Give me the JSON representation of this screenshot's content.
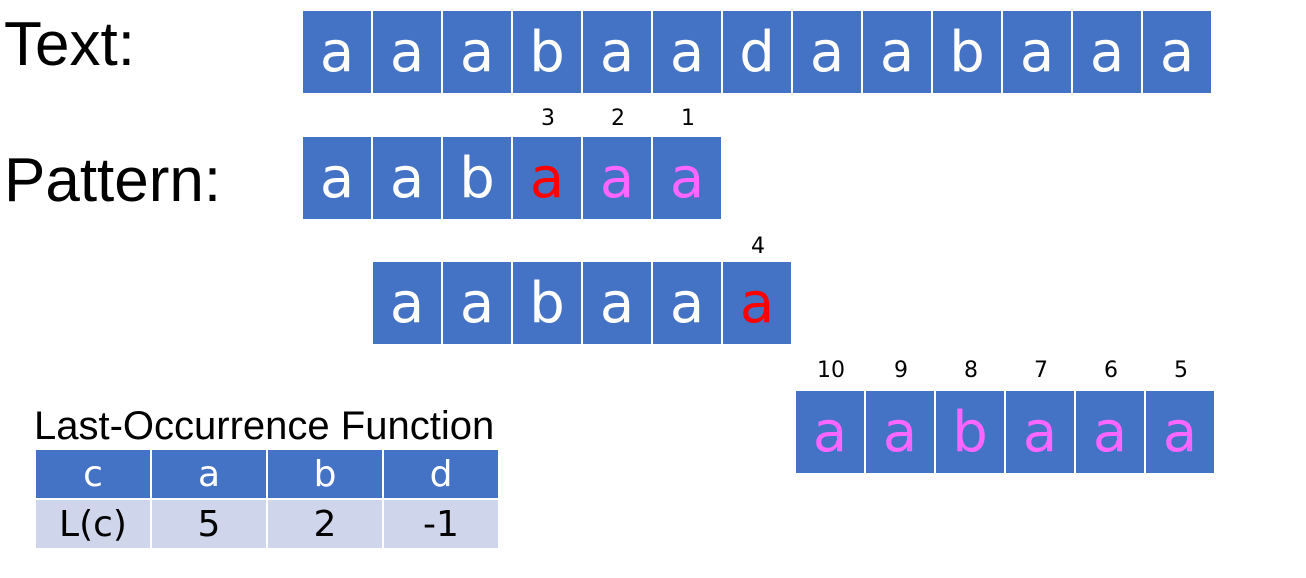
{
  "labels": {
    "text": "Text:",
    "pattern": "Pattern:"
  },
  "text_row": [
    "a",
    "a",
    "a",
    "b",
    "a",
    "a",
    "d",
    "a",
    "a",
    "b",
    "a",
    "a",
    "a"
  ],
  "pattern1": {
    "chars": [
      "a",
      "a",
      "b",
      "a",
      "a",
      "a"
    ],
    "colors": [
      "white",
      "white",
      "white",
      "red",
      "pink",
      "pink"
    ],
    "numbers": [
      "",
      "",
      "",
      "3",
      "2",
      "1"
    ]
  },
  "pattern2": {
    "chars": [
      "a",
      "a",
      "b",
      "a",
      "a",
      "a"
    ],
    "colors": [
      "white",
      "white",
      "white",
      "white",
      "white",
      "red"
    ],
    "numbers": [
      "",
      "",
      "",
      "",
      "",
      "4"
    ]
  },
  "pattern3": {
    "chars": [
      "a",
      "a",
      "b",
      "a",
      "a",
      "a"
    ],
    "colors": [
      "pink",
      "pink",
      "pink",
      "pink",
      "pink",
      "pink"
    ],
    "numbers": [
      "10",
      "9",
      "8",
      "7",
      "6",
      "5"
    ]
  },
  "last_occurrence": {
    "title": "Last-Occurrence Function",
    "header": [
      "c",
      "a",
      "b",
      "d"
    ],
    "values": [
      "L(c)",
      "5",
      "2",
      "-1"
    ]
  },
  "colors": {
    "cell_bg": "#4472c4",
    "red": "#ff0000",
    "pink": "#ff66ff",
    "table_row": "#cfd5ea"
  }
}
